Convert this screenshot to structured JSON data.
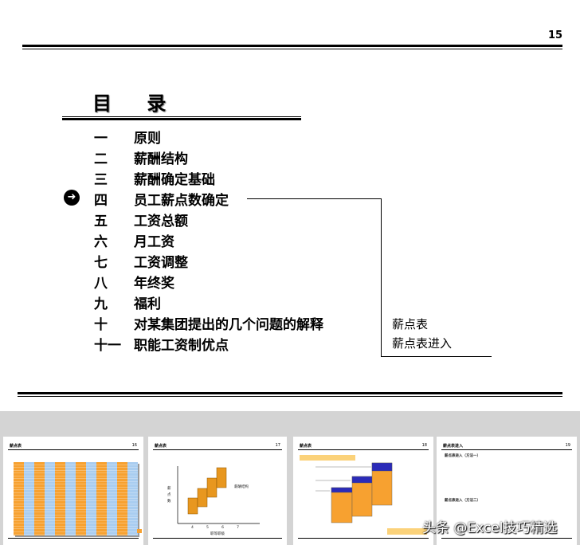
{
  "slide": {
    "page_number": "15",
    "title": "目 录",
    "toc": [
      {
        "num": "一",
        "label": "原则"
      },
      {
        "num": "二",
        "label": "薪酬结构"
      },
      {
        "num": "三",
        "label": "薪酬确定基础"
      },
      {
        "num": "四",
        "label": "员工薪点数确定",
        "current": true
      },
      {
        "num": "五",
        "label": "工资总额"
      },
      {
        "num": "六",
        "label": "月工资"
      },
      {
        "num": "七",
        "label": "工资调整"
      },
      {
        "num": "八",
        "label": "年终奖"
      },
      {
        "num": "九",
        "label": "福利"
      },
      {
        "num": "十",
        "label": "对某集团提出的几个问题的解释"
      },
      {
        "num": "十一",
        "label": "职能工资制优点"
      }
    ],
    "sub_items": [
      "薪点表",
      "薪点表进入"
    ],
    "current_icon": "arrow-right-circle-icon"
  },
  "thumbnails": [
    {
      "title": "薪点表",
      "page": "16"
    },
    {
      "title": "薪点表",
      "page": "17",
      "chart_ticks": [
        "4",
        "5",
        "6",
        "7"
      ],
      "xlabel": "职等职级",
      "ylabel": "薪点数",
      "note": "薪酬结构"
    },
    {
      "title": "薪点表",
      "page": "18"
    },
    {
      "title": "薪点表进入",
      "page": "19",
      "method1": "薪点表进入（方法一）",
      "method2": "薪点表进入（方法二）"
    }
  ],
  "watermark": "头条 @Excel技巧精选",
  "colors": {
    "orange": "#f7a130",
    "blue": "#a9cdf0",
    "navy": "#2b2bb8"
  }
}
